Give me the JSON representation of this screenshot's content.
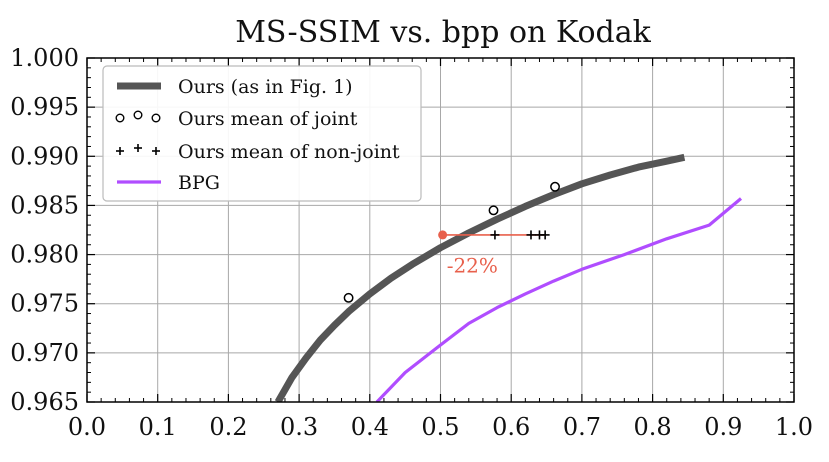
{
  "chart_data": {
    "type": "line",
    "title": "MS-SSIM vs. bpp on Kodak",
    "xlabel": "",
    "ylabel": "",
    "xlim": [
      0.0,
      1.0
    ],
    "ylim": [
      0.965,
      1.0
    ],
    "x_ticks": [
      0.0,
      0.1,
      0.2,
      0.3,
      0.4,
      0.5,
      0.6,
      0.7,
      0.8,
      0.9,
      1.0
    ],
    "x_tick_labels": [
      "0.0",
      "0.1",
      "0.2",
      "0.3",
      "0.4",
      "0.5",
      "0.6",
      "0.7",
      "0.8",
      "0.9",
      "1.0"
    ],
    "y_ticks": [
      0.965,
      0.97,
      0.975,
      0.98,
      0.985,
      0.99,
      0.995,
      1.0
    ],
    "y_tick_labels": [
      "0.965",
      "0.970",
      "0.975",
      "0.980",
      "0.985",
      "0.990",
      "0.995",
      "1.000"
    ],
    "grid": true,
    "legend_position": "top-left",
    "series": [
      {
        "name": "Ours (as in Fig. 1)",
        "kind": "line",
        "color": "#555555",
        "x": [
          0.27,
          0.29,
          0.31,
          0.33,
          0.35,
          0.37,
          0.4,
          0.43,
          0.46,
          0.5,
          0.54,
          0.58,
          0.62,
          0.66,
          0.7,
          0.74,
          0.78,
          0.82,
          0.845
        ],
        "y": [
          0.965,
          0.9675,
          0.9695,
          0.9713,
          0.9728,
          0.9742,
          0.976,
          0.9776,
          0.979,
          0.9807,
          0.9822,
          0.9836,
          0.9849,
          0.9861,
          0.9872,
          0.9881,
          0.9889,
          0.9895,
          0.9899
        ]
      },
      {
        "name": "Ours mean of joint",
        "kind": "marker-circle",
        "color": "#000000",
        "x": [
          0.37,
          0.575,
          0.662
        ],
        "y": [
          0.9756,
          0.9845,
          0.9869
        ]
      },
      {
        "name": "Ours mean of non-joint",
        "kind": "marker-plus",
        "color": "#000000",
        "x": [
          0.577,
          0.628,
          0.64,
          0.648
        ],
        "y": [
          0.982,
          0.982,
          0.982,
          0.982
        ]
      },
      {
        "name": "BPG",
        "kind": "line",
        "color": "#b04dff",
        "x": [
          0.41,
          0.45,
          0.5,
          0.54,
          0.58,
          0.62,
          0.66,
          0.7,
          0.76,
          0.82,
          0.88,
          0.925
        ],
        "y": [
          0.965,
          0.968,
          0.9708,
          0.973,
          0.9746,
          0.976,
          0.9773,
          0.9785,
          0.98,
          0.9816,
          0.983,
          0.9857
        ]
      }
    ],
    "annotation": {
      "text": "-22%",
      "color": "#e8604c",
      "from": [
        0.503,
        0.982
      ],
      "to": [
        0.648,
        0.982
      ],
      "label_at": [
        0.545,
        0.9794
      ]
    }
  }
}
